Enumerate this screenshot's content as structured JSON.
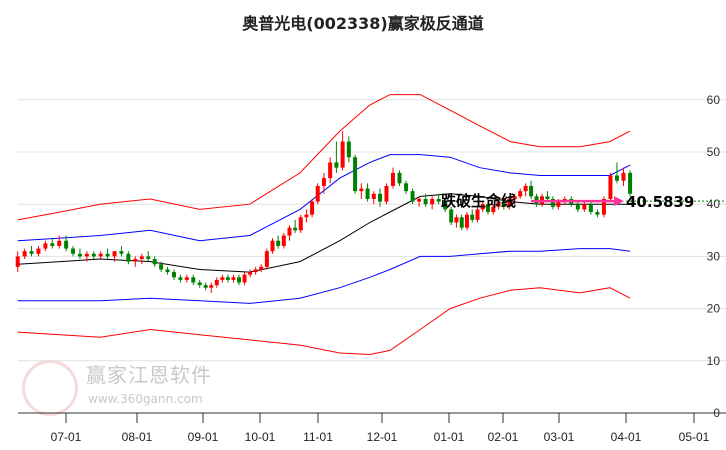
{
  "chart_data": {
    "type": "candlestick",
    "title": "奥普光电(002338)赢家极反通道",
    "ylim": [
      0,
      64
    ],
    "yticks": [
      0,
      10,
      20,
      30,
      40,
      50,
      60
    ],
    "xtick_labels": [
      "07-01",
      "08-01",
      "09-01",
      "10-01",
      "11-01",
      "12-01",
      "01-01",
      "02-01",
      "03-01",
      "04-01",
      "05-01"
    ],
    "x_unit": "months since 07-01",
    "candle_t_range": [
      -0.68,
      9.06
    ],
    "candles_ohlc": [
      [
        28,
        31,
        27,
        30
      ],
      [
        30,
        31.5,
        29.5,
        31
      ],
      [
        31,
        32,
        30,
        30.5
      ],
      [
        30.5,
        32,
        30,
        31.5
      ],
      [
        31.5,
        33,
        31,
        32.5
      ],
      [
        32.5,
        33.5,
        31.5,
        32
      ],
      [
        32,
        34,
        31.5,
        33
      ],
      [
        33,
        34,
        31,
        31.5
      ],
      [
        31.5,
        32,
        30,
        30.5
      ],
      [
        30.5,
        31.5,
        29.5,
        30
      ],
      [
        30,
        31,
        29,
        30.5
      ],
      [
        30.5,
        31,
        29.5,
        30
      ],
      [
        30,
        31,
        29.5,
        30.5
      ],
      [
        30.5,
        31.5,
        29.5,
        30
      ],
      [
        30,
        31,
        29,
        31
      ],
      [
        31,
        32,
        30,
        30.5
      ],
      [
        30.5,
        31,
        28.5,
        29
      ],
      [
        29,
        30,
        28,
        29.5
      ],
      [
        29.5,
        30.5,
        28.5,
        30
      ],
      [
        30,
        31,
        29,
        29.5
      ],
      [
        29.5,
        30,
        28,
        28.5
      ],
      [
        28.5,
        29,
        27,
        27.5
      ],
      [
        27.5,
        28,
        26.5,
        27
      ],
      [
        27,
        27.5,
        25.5,
        26
      ],
      [
        26,
        26.5,
        25,
        25.5
      ],
      [
        25.5,
        26.5,
        25,
        26
      ],
      [
        26,
        26.5,
        24.5,
        25
      ],
      [
        25,
        25.5,
        24,
        24.5
      ],
      [
        24.5,
        25,
        23.5,
        24
      ],
      [
        24,
        25,
        23,
        24.5
      ],
      [
        24.5,
        26,
        24,
        25.5
      ],
      [
        25.5,
        26.5,
        25,
        26
      ],
      [
        26,
        26.5,
        25,
        25.5
      ],
      [
        25.5,
        26.5,
        25,
        26
      ],
      [
        26,
        26.5,
        24.5,
        25
      ],
      [
        25,
        27,
        24.5,
        26.5
      ],
      [
        26.5,
        27.5,
        26,
        27
      ],
      [
        27,
        28,
        26.5,
        27.5
      ],
      [
        27.5,
        28.5,
        27,
        28
      ],
      [
        28,
        31.5,
        27.5,
        31
      ],
      [
        31,
        33.5,
        30.5,
        33
      ],
      [
        33,
        34,
        31.5,
        32
      ],
      [
        32,
        34.5,
        31.5,
        34
      ],
      [
        34,
        36,
        33,
        35.5
      ],
      [
        35.5,
        37,
        34.5,
        35
      ],
      [
        35,
        38,
        34.5,
        37.5
      ],
      [
        37.5,
        39,
        36.5,
        38
      ],
      [
        38,
        41,
        37.5,
        40.5
      ],
      [
        40.5,
        44,
        40,
        43.5
      ],
      [
        43.5,
        46,
        42,
        45
      ],
      [
        45,
        49,
        44,
        48
      ],
      [
        48,
        52,
        46,
        47
      ],
      [
        47,
        54,
        46.5,
        52
      ],
      [
        52,
        53,
        48,
        49
      ],
      [
        49,
        49.5,
        42,
        42.5
      ],
      [
        42.5,
        44,
        41,
        43
      ],
      [
        43,
        44,
        40.5,
        41
      ],
      [
        41,
        42.5,
        40,
        42
      ],
      [
        42,
        43,
        39.5,
        40.5
      ],
      [
        40.5,
        44,
        40,
        43.5
      ],
      [
        43.5,
        47,
        43,
        46
      ],
      [
        46,
        46.5,
        43.5,
        44
      ],
      [
        44,
        44.5,
        42,
        42.5
      ],
      [
        42.5,
        43,
        40,
        40.5
      ],
      [
        40.5,
        41.5,
        39.5,
        41
      ],
      [
        41,
        42,
        39.5,
        40
      ],
      [
        40,
        41.5,
        39,
        41
      ],
      [
        41,
        42,
        40,
        40.5
      ],
      [
        40.5,
        41,
        38.5,
        39
      ],
      [
        39,
        39.5,
        36,
        36.5
      ],
      [
        36.5,
        38,
        35.5,
        37.5
      ],
      [
        37.5,
        38,
        35,
        35.5
      ],
      [
        35.5,
        38.5,
        35,
        38
      ],
      [
        38,
        39,
        36.5,
        37
      ],
      [
        37,
        39.5,
        36.5,
        39
      ],
      [
        39,
        40.5,
        38.5,
        40
      ],
      [
        40,
        40.5,
        38,
        38.5
      ],
      [
        38.5,
        40,
        38,
        39.5
      ],
      [
        39.5,
        41,
        39,
        40.5
      ],
      [
        40.5,
        41,
        39,
        39.5
      ],
      [
        39.5,
        41.5,
        39,
        41
      ],
      [
        41,
        42,
        40,
        41.5
      ],
      [
        41.5,
        43,
        41,
        42.5
      ],
      [
        42.5,
        44,
        41.5,
        43.5
      ],
      [
        43.5,
        44.5,
        41,
        41.5
      ],
      [
        41.5,
        42,
        39.5,
        40
      ],
      [
        40,
        42,
        39.5,
        41.5
      ],
      [
        41.5,
        42.5,
        40.5,
        41
      ],
      [
        41,
        41.5,
        39,
        39.5
      ],
      [
        39.5,
        41,
        39,
        40.5
      ],
      [
        40.5,
        41.5,
        40,
        41
      ],
      [
        41,
        41.5,
        39.5,
        40
      ],
      [
        40,
        40.5,
        38.5,
        39
      ],
      [
        39,
        40.5,
        38.5,
        40
      ],
      [
        40,
        40.5,
        38,
        38.5
      ],
      [
        38.5,
        39,
        37.5,
        38
      ],
      [
        38,
        41.5,
        37.5,
        41
      ],
      [
        41,
        46,
        40.5,
        45.5
      ],
      [
        45.5,
        48,
        44,
        44.5
      ],
      [
        44.5,
        47,
        43.5,
        46
      ],
      [
        46,
        46.5,
        41.5,
        42
      ]
    ],
    "band_t": [
      -0.68,
      -0.08,
      0.48,
      1.2,
      1.95,
      2.82,
      3.69,
      4.34,
      4.81,
      5.12,
      5.57,
      6.02,
      6.57,
      7.13,
      7.66,
      8.31,
      8.76,
      9.06
    ],
    "bands": [
      {
        "name": "upper-outer",
        "color": "#ff0000",
        "values": [
          37,
          38.5,
          40,
          41,
          39,
          40,
          46,
          54,
          59,
          61,
          61,
          58,
          55,
          52,
          51,
          51,
          52,
          54
        ]
      },
      {
        "name": "upper-inner",
        "color": "#0000ff",
        "values": [
          33,
          33.5,
          34,
          35,
          33,
          34,
          39,
          45,
          48,
          49.5,
          49.5,
          49,
          47,
          46,
          45.5,
          45.5,
          45.5,
          47.5
        ]
      },
      {
        "name": "middle",
        "color": "#000000",
        "values": [
          28.5,
          29,
          29.5,
          29,
          27.5,
          27,
          29,
          33,
          36.5,
          38.5,
          41.5,
          42,
          41.5,
          40.5,
          40,
          40,
          40,
          40
        ]
      },
      {
        "name": "lower-inner",
        "color": "#0000ff",
        "values": [
          21.5,
          21.5,
          21.5,
          22,
          21.5,
          21,
          22,
          24,
          26,
          27.5,
          30,
          30,
          30.5,
          31,
          31,
          31.5,
          31.5,
          31
        ]
      },
      {
        "name": "lower-outer",
        "color": "#ff0000",
        "values": [
          15.5,
          15,
          14.5,
          16,
          15,
          14,
          13,
          11.5,
          11.2,
          12,
          16,
          20,
          22,
          23.5,
          24,
          23,
          24,
          22
        ]
      }
    ],
    "up_color": "#ff0000",
    "down_color": "#008000",
    "annotation": {
      "text": "跌破生命线",
      "arrow_t": [
        7.5,
        9.0
      ],
      "value": 40.5839,
      "value_label": "40.5839",
      "line_color": "#008000",
      "arrow_color": "#ff3399"
    }
  },
  "watermark": {
    "brand": "赢家江恩软件",
    "url": "www.360gann.com",
    "seal": "江赢恩家"
  }
}
